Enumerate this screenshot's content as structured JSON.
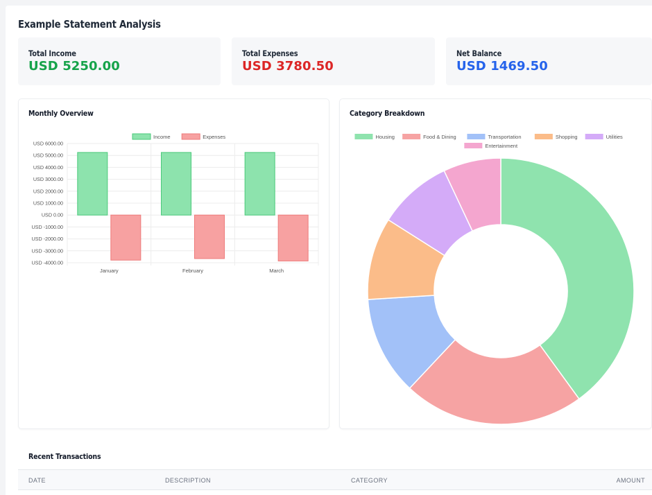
{
  "page": {
    "title": "Example Statement Analysis"
  },
  "summary": {
    "income": {
      "label": "Total Income",
      "value": "USD 5250.00",
      "color": "#16a34a"
    },
    "expenses": {
      "label": "Total Expenses",
      "value": "USD 3780.50",
      "color": "#dc2626"
    },
    "balance": {
      "label": "Net Balance",
      "value": "USD 1469.50",
      "color": "#2563eb"
    }
  },
  "monthly": {
    "title": "Monthly Overview",
    "chart_data": {
      "type": "bar",
      "categories": [
        "January",
        "February",
        "March"
      ],
      "series": [
        {
          "name": "Income",
          "values": [
            5250,
            5250,
            5250
          ],
          "color": "#8de3ad",
          "stroke": "#4ac97a"
        },
        {
          "name": "Expenses",
          "values": [
            -3780.5,
            -3650,
            -3850
          ],
          "color": "#f7a1a1",
          "stroke": "#ee7b7b"
        }
      ],
      "ylim": [
        -4000,
        6000
      ],
      "ticks": [
        6000,
        5000,
        4000,
        3000,
        2000,
        1000,
        0,
        -1000,
        -2000,
        -3000,
        -4000
      ],
      "tick_labels": [
        "USD 6000.00",
        "USD 5000.00",
        "USD 4000.00",
        "USD 3000.00",
        "USD 2000.00",
        "USD 1000.00",
        "USD 0.00",
        "USD -1000.00",
        "USD -2000.00",
        "USD -3000.00",
        "USD -4000.00"
      ],
      "legend": "top",
      "grid": true
    }
  },
  "category": {
    "title": "Category Breakdown",
    "chart_data": {
      "type": "pie",
      "donut": true,
      "labels": [
        "Housing",
        "Food & Dining",
        "Transportation",
        "Shopping",
        "Utilities",
        "Entertainment"
      ],
      "values": [
        40,
        22,
        12,
        10,
        9,
        7
      ],
      "colors": [
        "#8fe3ae",
        "#f6a3a3",
        "#a2c1f8",
        "#fbbc89",
        "#d4abf8",
        "#f4a6cf"
      ],
      "legend": "top"
    }
  },
  "transactions": {
    "title": "Recent Transactions",
    "columns": [
      "DATE",
      "DESCRIPTION",
      "CATEGORY",
      "AMOUNT"
    ]
  }
}
